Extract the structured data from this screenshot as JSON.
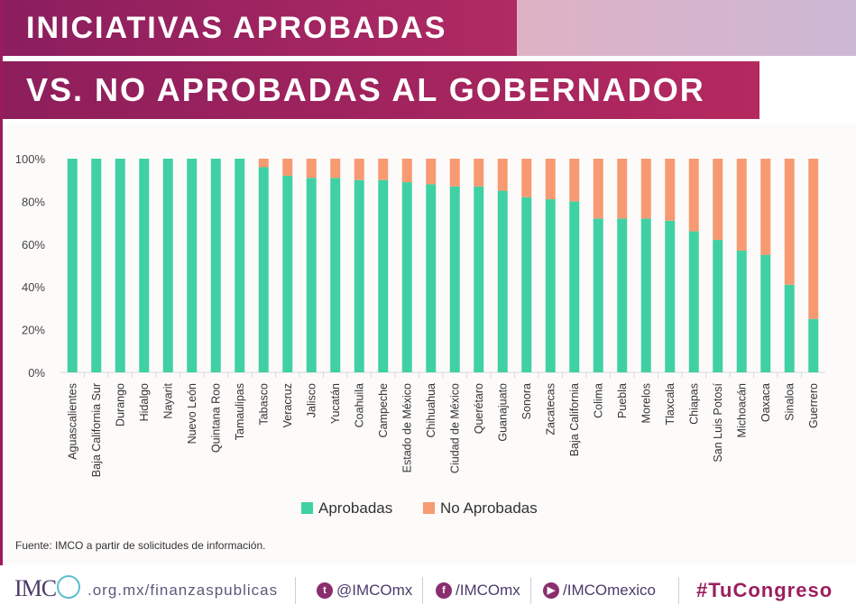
{
  "header": {
    "title_line1": "INICIATIVAS APROBADAS",
    "title_line2": "VS. NO APROBADAS AL GOBERNADOR"
  },
  "colors": {
    "aprobadas": "#3fd1a3",
    "no_aprobadas": "#f79a72",
    "brand": "#9a1f5e"
  },
  "chart_data": {
    "type": "bar",
    "stacked": true,
    "categories": [
      "Aguascalientes",
      "Baja California Sur",
      "Durango",
      "Hidalgo",
      "Nayarit",
      "Nuevo León",
      "Quintana Roo",
      "Tamaulipas",
      "Tabasco",
      "Veracruz",
      "Jalisco",
      "Yucatán",
      "Coahuila",
      "Campeche",
      "Estado de México",
      "Chihuahua",
      "Ciudad de México",
      "Querétaro",
      "Guanajuato",
      "Sonora",
      "Zacatecas",
      "Baja California",
      "Colima",
      "Puebla",
      "Morelos",
      "Tlaxcala",
      "Chiapas",
      "San Luis Potosí",
      "Michoacán",
      "Oaxaca",
      "Sinaloa",
      "Guerrero"
    ],
    "series": [
      {
        "name": "Aprobadas",
        "values": [
          100,
          100,
          100,
          100,
          100,
          100,
          100,
          100,
          96,
          92,
          91,
          91,
          90,
          90,
          89,
          88,
          87,
          87,
          85,
          82,
          81,
          80,
          72,
          72,
          72,
          71,
          66,
          62,
          57,
          55,
          41,
          25
        ]
      },
      {
        "name": "No Aprobadas",
        "values": [
          0,
          0,
          0,
          0,
          0,
          0,
          0,
          0,
          4,
          8,
          9,
          9,
          10,
          10,
          11,
          12,
          13,
          13,
          15,
          18,
          19,
          20,
          28,
          28,
          28,
          29,
          34,
          38,
          43,
          45,
          59,
          75
        ]
      }
    ],
    "yticks": [
      "0%",
      "20%",
      "40%",
      "60%",
      "80%",
      "100%"
    ],
    "ylim": [
      0,
      100
    ],
    "legend_position": "bottom-center",
    "grid": false
  },
  "source": "Fuente: IMCO a partir de solicitudes de información.",
  "footer": {
    "logo_text": "IMC",
    "url": ".org.mx/finanzaspublicas",
    "twitter": "@IMCOmx",
    "facebook": "/IMCOmx",
    "youtube": "/IMCOmexico",
    "hashtag": "#TuCongreso"
  }
}
